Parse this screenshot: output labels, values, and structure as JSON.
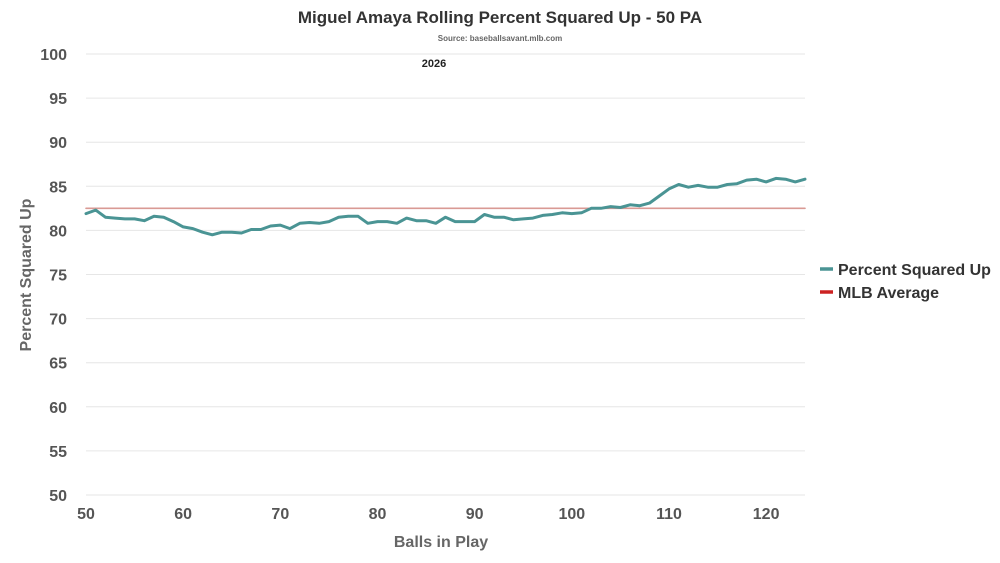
{
  "chart_data": {
    "type": "line",
    "title": "Miguel Amaya Rolling Percent Squared Up - 50 PA",
    "subtitle": "Source: baseballsavant.mlb.com",
    "annotation": "2026",
    "xlabel": "Balls in Play",
    "ylabel": "Percent Squared Up",
    "xlim": [
      50,
      124
    ],
    "ylim": [
      50,
      100
    ],
    "xticks": [
      50,
      60,
      70,
      80,
      90,
      100,
      110,
      120
    ],
    "yticks": [
      50,
      55,
      60,
      65,
      70,
      75,
      80,
      85,
      90,
      95,
      100
    ],
    "grid": true,
    "legend_position": "right",
    "series": [
      {
        "name": "Percent Squared Up",
        "color": "#4a9494",
        "x": [
          50,
          51,
          52,
          53,
          54,
          55,
          56,
          57,
          58,
          59,
          60,
          61,
          62,
          63,
          64,
          65,
          66,
          67,
          68,
          69,
          70,
          71,
          72,
          73,
          74,
          75,
          76,
          77,
          78,
          79,
          80,
          81,
          82,
          83,
          84,
          85,
          86,
          87,
          88,
          89,
          90,
          91,
          92,
          93,
          94,
          95,
          96,
          97,
          98,
          99,
          100,
          101,
          102,
          103,
          104,
          105,
          106,
          107,
          108,
          109,
          110,
          111,
          112,
          113,
          114,
          115,
          116,
          117,
          118,
          119,
          120,
          121,
          122,
          123,
          124
        ],
        "y": [
          81.9,
          82.3,
          81.5,
          81.4,
          81.3,
          81.3,
          81.1,
          81.6,
          81.5,
          81.0,
          80.4,
          80.2,
          79.8,
          79.5,
          79.8,
          79.8,
          79.7,
          80.1,
          80.1,
          80.5,
          80.6,
          80.2,
          80.8,
          80.9,
          80.8,
          81.0,
          81.5,
          81.6,
          81.6,
          80.8,
          81.0,
          81.0,
          80.8,
          81.4,
          81.1,
          81.1,
          80.8,
          81.5,
          81.0,
          81.0,
          81.0,
          81.8,
          81.5,
          81.5,
          81.2,
          81.3,
          81.4,
          81.7,
          81.8,
          82.0,
          81.9,
          82.0,
          82.5,
          82.5,
          82.7,
          82.6,
          82.9,
          82.8,
          83.1,
          83.9,
          84.7,
          85.2,
          84.9,
          85.1,
          84.9,
          84.9,
          85.2,
          85.3,
          85.7,
          85.8,
          85.5,
          85.9,
          85.8,
          85.5,
          85.8
        ]
      },
      {
        "name": "MLB Average",
        "color": "#d99a94",
        "legend_color": "#cc2222",
        "x": [
          50,
          124
        ],
        "y": [
          82.5,
          82.5
        ]
      }
    ]
  }
}
